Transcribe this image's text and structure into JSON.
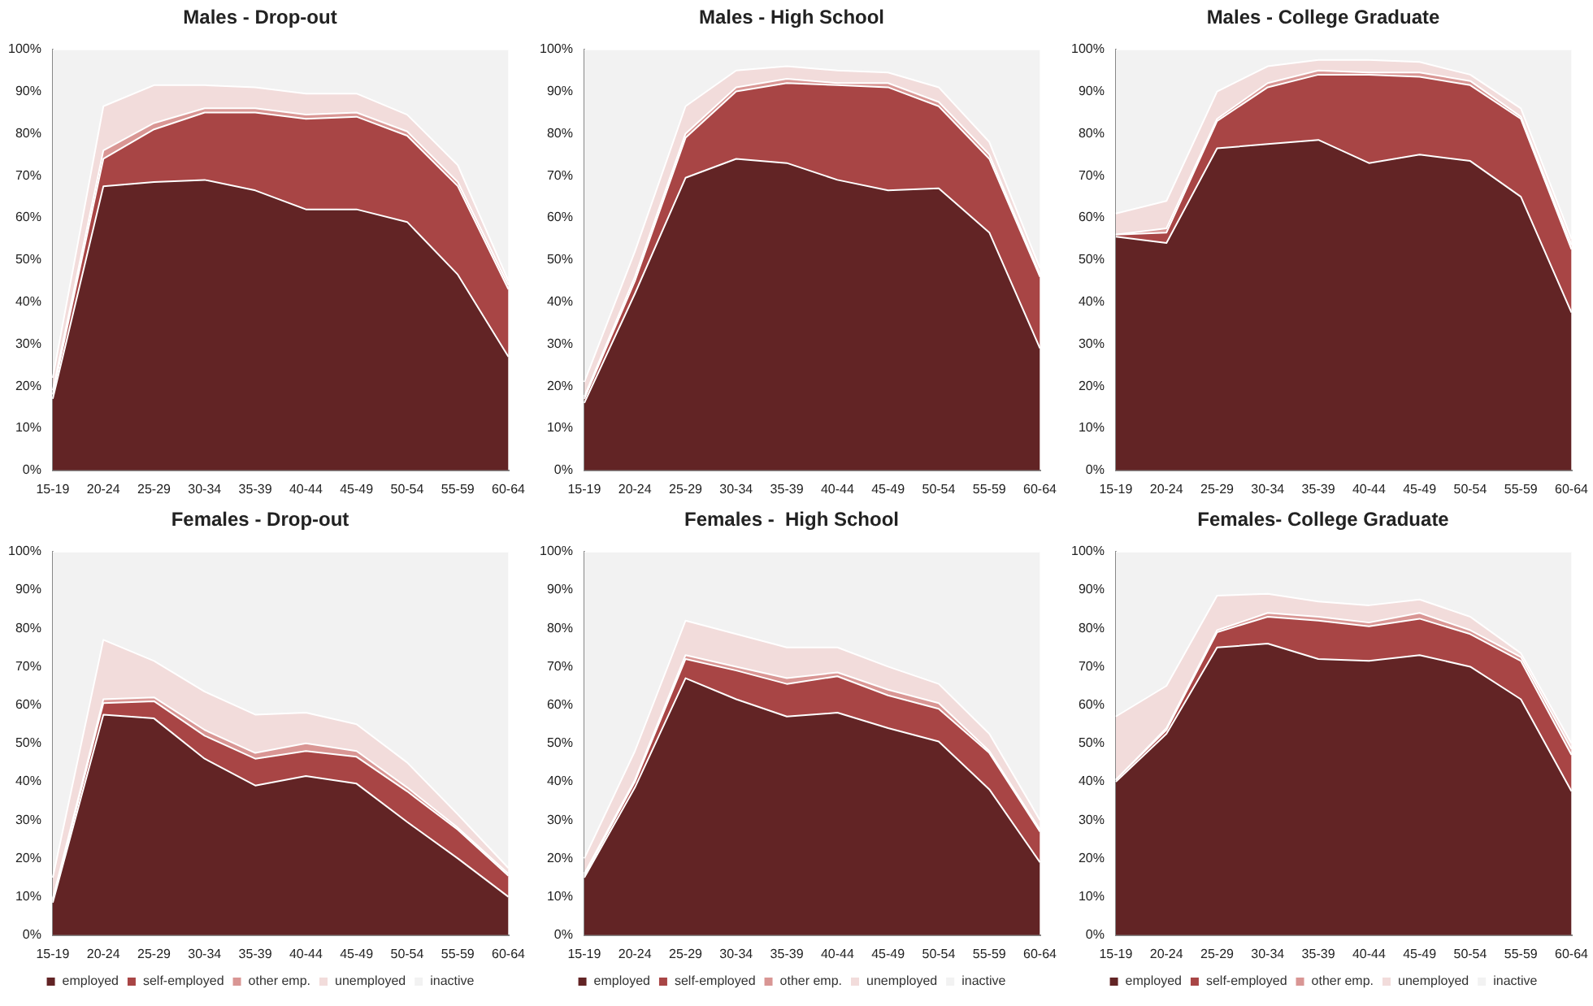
{
  "chart_data": [
    {
      "type": "area",
      "title": "Males - Drop-out",
      "stacked": true,
      "legend": false,
      "grid": false,
      "categories": [
        "15-19",
        "20-24",
        "25-29",
        "30-34",
        "35-39",
        "40-44",
        "45-49",
        "50-54",
        "55-59",
        "60-64"
      ],
      "ylim": [
        0,
        100
      ],
      "yticks": [
        {
          "value": 0,
          "label": "0%"
        },
        {
          "value": 10,
          "label": "10%"
        },
        {
          "value": 20,
          "label": "20%"
        },
        {
          "value": 30,
          "label": "30%"
        },
        {
          "value": 40,
          "label": "40%"
        },
        {
          "value": 50,
          "label": "50%"
        },
        {
          "value": 60,
          "label": "60%"
        },
        {
          "value": 70,
          "label": "70%"
        },
        {
          "value": 80,
          "label": "80%"
        },
        {
          "value": 90,
          "label": "90%"
        },
        {
          "value": 100,
          "label": "100%"
        }
      ],
      "series": [
        {
          "color": "#622425",
          "values": [
            17,
            67.5,
            68.5,
            69,
            66.5,
            62,
            62,
            59,
            46.5,
            27
          ]
        },
        {
          "color": "#a84545",
          "values": [
            1,
            6.5,
            12.5,
            16,
            18.5,
            21.5,
            22,
            20.5,
            21,
            16
          ]
        },
        {
          "color": "#d99694",
          "values": [
            1,
            2,
            1.5,
            1,
            1,
            1,
            1,
            1,
            1,
            1
          ]
        },
        {
          "color": "#f2dcdb",
          "values": [
            3,
            10.5,
            9,
            5.5,
            5,
            5,
            4.5,
            4,
            4,
            1
          ]
        },
        {
          "color": "#f2f2f2",
          "values": [
            78,
            13.5,
            8.5,
            8.5,
            9,
            10.5,
            10.5,
            15.5,
            27.5,
            55
          ]
        }
      ]
    },
    {
      "type": "area",
      "title": "Males - High School",
      "stacked": true,
      "legend": false,
      "grid": false,
      "categories": [
        "15-19",
        "20-24",
        "25-29",
        "30-34",
        "35-39",
        "40-44",
        "45-49",
        "50-54",
        "55-59",
        "60-64"
      ],
      "ylim": [
        0,
        100
      ],
      "yticks": [
        {
          "value": 0,
          "label": "0%"
        },
        {
          "value": 10,
          "label": "10%"
        },
        {
          "value": 20,
          "label": "20%"
        },
        {
          "value": 30,
          "label": "30%"
        },
        {
          "value": 40,
          "label": "40%"
        },
        {
          "value": 50,
          "label": "50%"
        },
        {
          "value": 60,
          "label": "60%"
        },
        {
          "value": 70,
          "label": "70%"
        },
        {
          "value": 80,
          "label": "80%"
        },
        {
          "value": 90,
          "label": "90%"
        },
        {
          "value": 100,
          "label": "100%"
        }
      ],
      "series": [
        {
          "color": "#622425",
          "values": [
            16,
            42,
            69.5,
            74,
            73,
            69,
            66.5,
            67,
            56.5,
            29
          ]
        },
        {
          "color": "#a84545",
          "values": [
            1,
            3,
            9.5,
            16,
            19,
            22.5,
            24.5,
            19.5,
            17.5,
            17
          ]
        },
        {
          "color": "#d99694",
          "values": [
            0.5,
            1,
            1,
            1,
            1,
            0.5,
            1,
            1,
            1,
            0.5
          ]
        },
        {
          "color": "#f2dcdb",
          "values": [
            3.5,
            6,
            6.5,
            4,
            3,
            3,
            2.5,
            3.5,
            3,
            1.5
          ]
        },
        {
          "color": "#f2f2f2",
          "values": [
            79,
            48,
            13.5,
            5,
            4,
            5,
            5.5,
            9,
            22,
            52
          ]
        }
      ]
    },
    {
      "type": "area",
      "title": "Males - College Graduate",
      "stacked": true,
      "legend": false,
      "grid": false,
      "categories": [
        "15-19",
        "20-24",
        "25-29",
        "30-34",
        "35-39",
        "40-44",
        "45-49",
        "50-54",
        "55-59",
        "60-64"
      ],
      "ylim": [
        0,
        100
      ],
      "yticks": [
        {
          "value": 0,
          "label": "0%"
        },
        {
          "value": 10,
          "label": "10%"
        },
        {
          "value": 20,
          "label": "20%"
        },
        {
          "value": 30,
          "label": "30%"
        },
        {
          "value": 40,
          "label": "40%"
        },
        {
          "value": 50,
          "label": "50%"
        },
        {
          "value": 60,
          "label": "60%"
        },
        {
          "value": 70,
          "label": "70%"
        },
        {
          "value": 80,
          "label": "80%"
        },
        {
          "value": 90,
          "label": "90%"
        },
        {
          "value": 100,
          "label": "100%"
        }
      ],
      "series": [
        {
          "color": "#622425",
          "values": [
            55.5,
            54,
            76.5,
            77.5,
            78.5,
            73,
            75,
            73.5,
            65,
            37.5
          ]
        },
        {
          "color": "#a84545",
          "values": [
            0.5,
            2.5,
            6.5,
            13.5,
            15.5,
            21,
            18.5,
            18,
            18.5,
            15
          ]
        },
        {
          "color": "#d99694",
          "values": [
            0,
            1,
            0.5,
            1,
            1,
            0.5,
            1,
            1,
            0.5,
            1
          ]
        },
        {
          "color": "#f2dcdb",
          "values": [
            5,
            6.5,
            6.5,
            4,
            2.5,
            3,
            2.5,
            1.5,
            2,
            1.5
          ]
        },
        {
          "color": "#f2f2f2",
          "values": [
            39,
            36,
            10,
            4,
            2.5,
            2.5,
            3,
            6,
            14,
            45
          ]
        }
      ]
    },
    {
      "type": "area",
      "title": "Females - Drop-out",
      "stacked": true,
      "legend": "bottom",
      "grid": false,
      "categories": [
        "15-19",
        "20-24",
        "25-29",
        "30-34",
        "35-39",
        "40-44",
        "45-49",
        "50-54",
        "55-59",
        "60-64"
      ],
      "ylim": [
        0,
        100
      ],
      "yticks": [
        {
          "value": 0,
          "label": "0%"
        },
        {
          "value": 10,
          "label": "10%"
        },
        {
          "value": 20,
          "label": "20%"
        },
        {
          "value": 30,
          "label": "30%"
        },
        {
          "value": 40,
          "label": "40%"
        },
        {
          "value": 50,
          "label": "50%"
        },
        {
          "value": 60,
          "label": "60%"
        },
        {
          "value": 70,
          "label": "70%"
        },
        {
          "value": 80,
          "label": "80%"
        },
        {
          "value": 90,
          "label": "90%"
        },
        {
          "value": 100,
          "label": "100%"
        }
      ],
      "series": [
        {
          "name": "employed",
          "color": "#622425",
          "values": [
            8.5,
            57.5,
            56.5,
            46,
            39,
            41.5,
            39.5,
            29.5,
            20,
            10
          ]
        },
        {
          "name": "self-employed",
          "color": "#a84545",
          "values": [
            0.5,
            3,
            4.5,
            6,
            7,
            6.5,
            7,
            8,
            7.5,
            5.5
          ]
        },
        {
          "name": "other emp.",
          "color": "#d99694",
          "values": [
            0.5,
            1,
            1,
            1.5,
            1.5,
            2,
            1.5,
            1,
            0.5,
            0.5
          ]
        },
        {
          "name": "unemployed",
          "color": "#f2dcdb",
          "values": [
            5.5,
            15.5,
            9.5,
            10,
            10,
            8,
            7,
            6.5,
            3.5,
            1.5
          ]
        },
        {
          "name": "inactive",
          "color": "#f2f2f2",
          "values": [
            85,
            23,
            28.5,
            36.5,
            42.5,
            42,
            45,
            55,
            68.5,
            82.5
          ]
        }
      ]
    },
    {
      "type": "area",
      "title": "Females -  High School",
      "stacked": true,
      "legend": "bottom",
      "grid": false,
      "categories": [
        "15-19",
        "20-24",
        "25-29",
        "30-34",
        "35-39",
        "40-44",
        "45-49",
        "50-54",
        "55-59",
        "60-64"
      ],
      "ylim": [
        0,
        100
      ],
      "yticks": [
        {
          "value": 0,
          "label": "0%"
        },
        {
          "value": 10,
          "label": "10%"
        },
        {
          "value": 20,
          "label": "20%"
        },
        {
          "value": 30,
          "label": "30%"
        },
        {
          "value": 40,
          "label": "40%"
        },
        {
          "value": 50,
          "label": "50%"
        },
        {
          "value": 60,
          "label": "60%"
        },
        {
          "value": 70,
          "label": "70%"
        },
        {
          "value": 80,
          "label": "80%"
        },
        {
          "value": 90,
          "label": "90%"
        },
        {
          "value": 100,
          "label": "100%"
        }
      ],
      "series": [
        {
          "name": "employed",
          "color": "#622425",
          "values": [
            15,
            38.5,
            67,
            61.5,
            57,
            58,
            54,
            50.5,
            38,
            19
          ]
        },
        {
          "name": "self-employed",
          "color": "#a84545",
          "values": [
            0.5,
            1.5,
            5,
            7.5,
            8.5,
            9.5,
            8.5,
            8.5,
            9.5,
            8
          ]
        },
        {
          "name": "other emp.",
          "color": "#d99694",
          "values": [
            0.5,
            0.5,
            1,
            1,
            1.5,
            1,
            1.5,
            1.5,
            0.5,
            0.5
          ]
        },
        {
          "name": "unemployed",
          "color": "#f2dcdb",
          "values": [
            4,
            7.5,
            9,
            8.5,
            8,
            6.5,
            6,
            5,
            4.5,
            2.5
          ]
        },
        {
          "name": "inactive",
          "color": "#f2f2f2",
          "values": [
            80,
            52,
            18,
            21.5,
            25,
            25,
            30,
            34.5,
            47.5,
            70
          ]
        }
      ]
    },
    {
      "type": "area",
      "title": "Females- College Graduate",
      "stacked": true,
      "legend": "bottom",
      "grid": false,
      "categories": [
        "15-19",
        "20-24",
        "25-29",
        "30-34",
        "35-39",
        "40-44",
        "45-49",
        "50-54",
        "55-59",
        "60-64"
      ],
      "ylim": [
        0,
        100
      ],
      "yticks": [
        {
          "value": 0,
          "label": "0%"
        },
        {
          "value": 10,
          "label": "10%"
        },
        {
          "value": 20,
          "label": "20%"
        },
        {
          "value": 30,
          "label": "30%"
        },
        {
          "value": 40,
          "label": "40%"
        },
        {
          "value": 50,
          "label": "50%"
        },
        {
          "value": 60,
          "label": "60%"
        },
        {
          "value": 70,
          "label": "70%"
        },
        {
          "value": 80,
          "label": "80%"
        },
        {
          "value": 90,
          "label": "90%"
        },
        {
          "value": 100,
          "label": "100%"
        }
      ],
      "series": [
        {
          "name": "employed",
          "color": "#622425",
          "values": [
            40,
            52.5,
            75,
            76,
            72,
            71.5,
            73,
            70,
            61.5,
            37.5
          ]
        },
        {
          "name": "self-employed",
          "color": "#a84545",
          "values": [
            0.5,
            1,
            4,
            7,
            10,
            9,
            9.5,
            8.5,
            10,
            9.5
          ]
        },
        {
          "name": "other emp.",
          "color": "#d99694",
          "values": [
            0,
            0.5,
            0.5,
            1,
            1,
            1,
            1.5,
            1,
            1,
            1.5
          ]
        },
        {
          "name": "unemployed",
          "color": "#f2dcdb",
          "values": [
            16.5,
            11,
            9,
            5,
            4,
            4.5,
            3.5,
            3.5,
            1,
            1.5
          ]
        },
        {
          "name": "inactive",
          "color": "#f2f2f2",
          "values": [
            43,
            35,
            11.5,
            11,
            13,
            14,
            12.5,
            17,
            26.5,
            50
          ]
        }
      ]
    }
  ]
}
